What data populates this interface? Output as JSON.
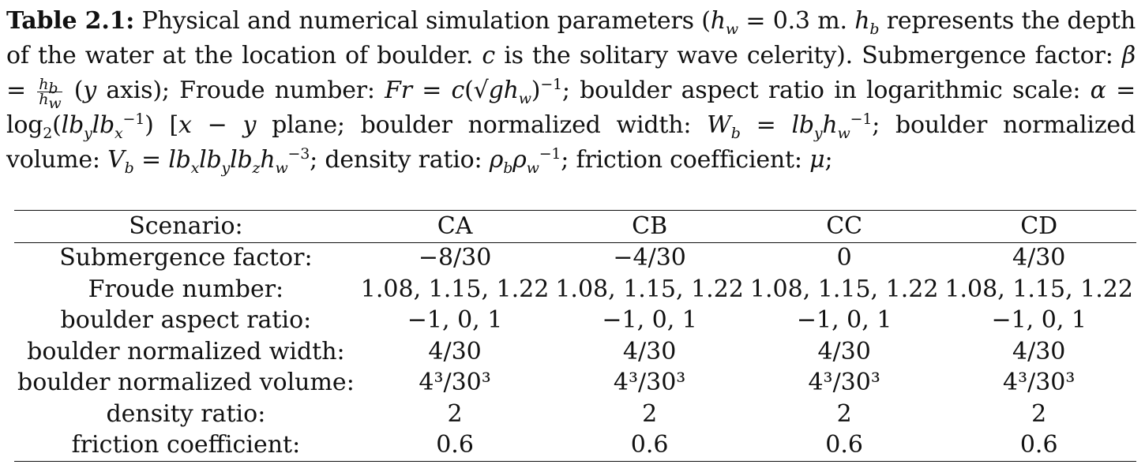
{
  "caption": {
    "label": "Table 2.1:",
    "seg1": " Physical and numerical simulation parameters (",
    "hw": "h",
    "hw_sub": "w",
    "seg2": " = 0.3 m.  ",
    "hb": "h",
    "hb_sub": "b",
    "seg3": " represents the depth of the water at the location of boulder. ",
    "c": "c",
    "seg4": " is the solitary wave celerity). Submergence factor: ",
    "beta": "β",
    "eq": " = ",
    "frac_num": "h",
    "frac_num_sub": "b",
    "frac_den": "h",
    "frac_den_sub": "w",
    "seg5": " (",
    "y": "y",
    "seg6": " axis); Froude number: ",
    "fr": "Fr",
    "seg7": " = ",
    "c2": "c",
    "sqrt": "(√",
    "gh": "gh",
    "gh_sub": "w",
    "seg8": ")",
    "inv": "−1",
    "seg9": "; boulder aspect ratio in logarithmic scale: ",
    "alpha": "α",
    "seg10": " = log",
    "log_sub": "2",
    "seg11": "(",
    "lby": "lb",
    "lby_sub": "y",
    "lbx": "lb",
    "lbx_sub": "x",
    "lbx_sup": "−1",
    "seg12": ") [",
    "x": "x",
    "seg13": " − ",
    "y2": "y",
    "seg14": " plane; boulder normalized width: ",
    "wb": "W",
    "wb_sub": "b",
    "seg15": " = ",
    "lby2": "lb",
    "lby2_sub": "y",
    "hw2": "h",
    "hw2_sub": "w",
    "hw2_sup": "−1",
    "seg16": "; boulder normalized volume: ",
    "vb": "V",
    "vb_sub": "b",
    "seg17": " = ",
    "lbx3": "lb",
    "lbx3_sub": "x",
    "lby3": "lb",
    "lby3_sub": "y",
    "lbz3": "lb",
    "lbz3_sub": "z",
    "hw3": "h",
    "hw3_sub": "w",
    "hw3_sup": "−3",
    "seg18": "; density ratio: ",
    "rho1": "ρ",
    "rho1_sub": "b",
    "rho2": "ρ",
    "rho2_sub": "w",
    "rho2_sup": "−1",
    "seg19": "; friction coefficient: ",
    "mu": "μ",
    "seg20": ";"
  },
  "table": {
    "header": [
      "Scenario:",
      "CA",
      "CB",
      "CC",
      "CD"
    ],
    "rows": [
      [
        "Submergence factor:",
        "−8/30",
        "−4/30",
        "0",
        "4/30"
      ],
      [
        "Froude number:",
        "1.08, 1.15, 1.22",
        "1.08, 1.15, 1.22",
        "1.08, 1.15, 1.22",
        "1.08, 1.15, 1.22"
      ],
      [
        "boulder aspect ratio:",
        "−1, 0, 1",
        "−1, 0, 1",
        "−1, 0, 1",
        "−1, 0, 1"
      ],
      [
        "boulder normalized width:",
        "4/30",
        "4/30",
        "4/30",
        "4/30"
      ],
      [
        "boulder normalized volume:",
        "4³/30³",
        "4³/30³",
        "4³/30³",
        "4³/30³"
      ],
      [
        "density ratio:",
        "2",
        "2",
        "2",
        "2"
      ],
      [
        "friction coefficient:",
        "0.6",
        "0.6",
        "0.6",
        "0.6"
      ]
    ]
  }
}
